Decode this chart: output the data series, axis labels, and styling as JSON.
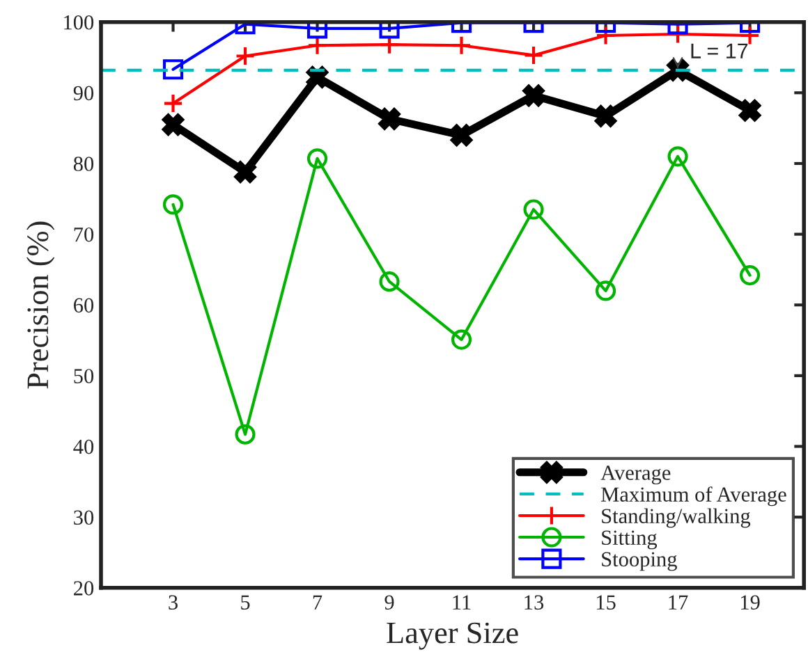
{
  "chart_data": {
    "type": "line",
    "xlabel": "Layer Size",
    "ylabel": "Precision (%)",
    "x": [
      3,
      5,
      7,
      9,
      11,
      13,
      15,
      17,
      19
    ],
    "xlim": [
      1,
      20.5
    ],
    "xticks": [
      3,
      5,
      7,
      9,
      11,
      13,
      15,
      17,
      19
    ],
    "ylim": [
      20,
      100
    ],
    "yticks": [
      20,
      30,
      40,
      50,
      60,
      70,
      80,
      90,
      100
    ],
    "grid": false,
    "legend": "bottom right",
    "line_style": "solid",
    "series": [
      {
        "name": "Average",
        "color": "#000000",
        "marker": "cross",
        "values": [
          85.5,
          78.8,
          92.2,
          86.3,
          84.0,
          89.6,
          86.7,
          93.2,
          87.5
        ]
      },
      {
        "name": "Standing/walking",
        "color": "#ff0000",
        "marker": "plus",
        "values": [
          88.5,
          95.2,
          96.7,
          96.8,
          96.7,
          95.3,
          98.1,
          98.3,
          98.1
        ]
      },
      {
        "name": "Sitting",
        "color": "#00b400",
        "marker": "circle",
        "values": [
          74.2,
          41.7,
          80.7,
          63.3,
          55.1,
          73.5,
          62.0,
          81.0,
          64.2
        ]
      },
      {
        "name": "Stooping",
        "color": "#0000ff",
        "marker": "square",
        "values": [
          93.3,
          99.7,
          99.1,
          99.1,
          99.9,
          99.9,
          99.9,
          99.7,
          99.9
        ]
      }
    ],
    "ref_lines": [
      {
        "axis": "y",
        "value": 93.2,
        "label": "Maximum of Average",
        "color": "#00bfbf",
        "line_style": "dashed"
      }
    ],
    "annotations": [
      {
        "text": "L = 17",
        "x": 17,
        "y": 93.2
      }
    ]
  }
}
